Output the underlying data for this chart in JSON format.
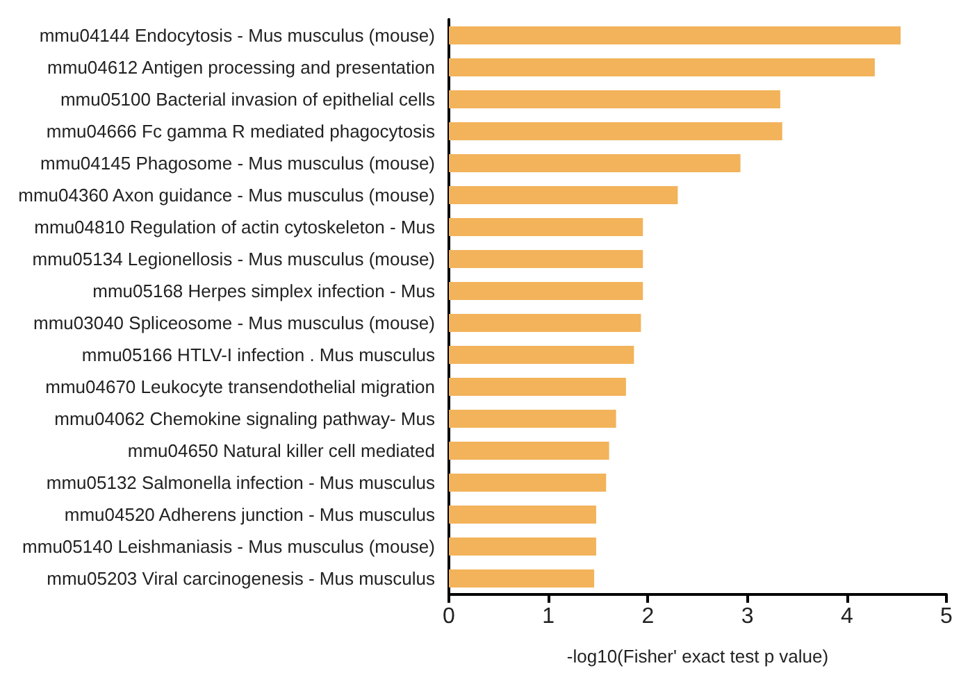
{
  "chart_data": {
    "type": "bar",
    "orientation": "horizontal",
    "xlabel": "-log10(Fisher' exact test p value)",
    "categories": [
      "mmu04144 Endocytosis - Mus musculus (mouse)",
      "mmu04612 Antigen processing and presentation",
      "mmu05100 Bacterial invasion of epithelial cells",
      "mmu04666 Fc gamma R mediated phagocytosis",
      "mmu04145 Phagosome - Mus musculus (mouse)",
      "mmu04360 Axon guidance - Mus musculus (mouse)",
      "mmu04810 Regulation of actin cytoskeleton - Mus",
      "mmu05134 Legionellosis - Mus musculus (mouse)",
      "mmu05168 Herpes simplex infection - Mus",
      "mmu03040 Spliceosome - Mus musculus (mouse)",
      "mmu05166 HTLV-I infection . Mus musculus",
      "mmu04670 Leukocyte transendothelial migration",
      "mmu04062 Chemokine signaling pathway- Mus",
      "mmu04650 Natural killer cell mediated",
      "mmu05132 Salmonella infection - Mus musculus",
      "mmu04520 Adherens junction - Mus musculus",
      "mmu05140 Leishmaniasis - Mus musculus (mouse)",
      "mmu05203 Viral carcinogenesis - Mus musculus"
    ],
    "values": [
      4.54,
      4.28,
      3.33,
      3.35,
      2.93,
      2.3,
      1.95,
      1.95,
      1.95,
      1.93,
      1.86,
      1.78,
      1.68,
      1.61,
      1.58,
      1.48,
      1.48,
      1.46
    ],
    "color": "#f2b35a",
    "xlim": [
      0,
      5
    ],
    "xticks": [
      0,
      1,
      2,
      3,
      4,
      5
    ],
    "grid": false
  }
}
